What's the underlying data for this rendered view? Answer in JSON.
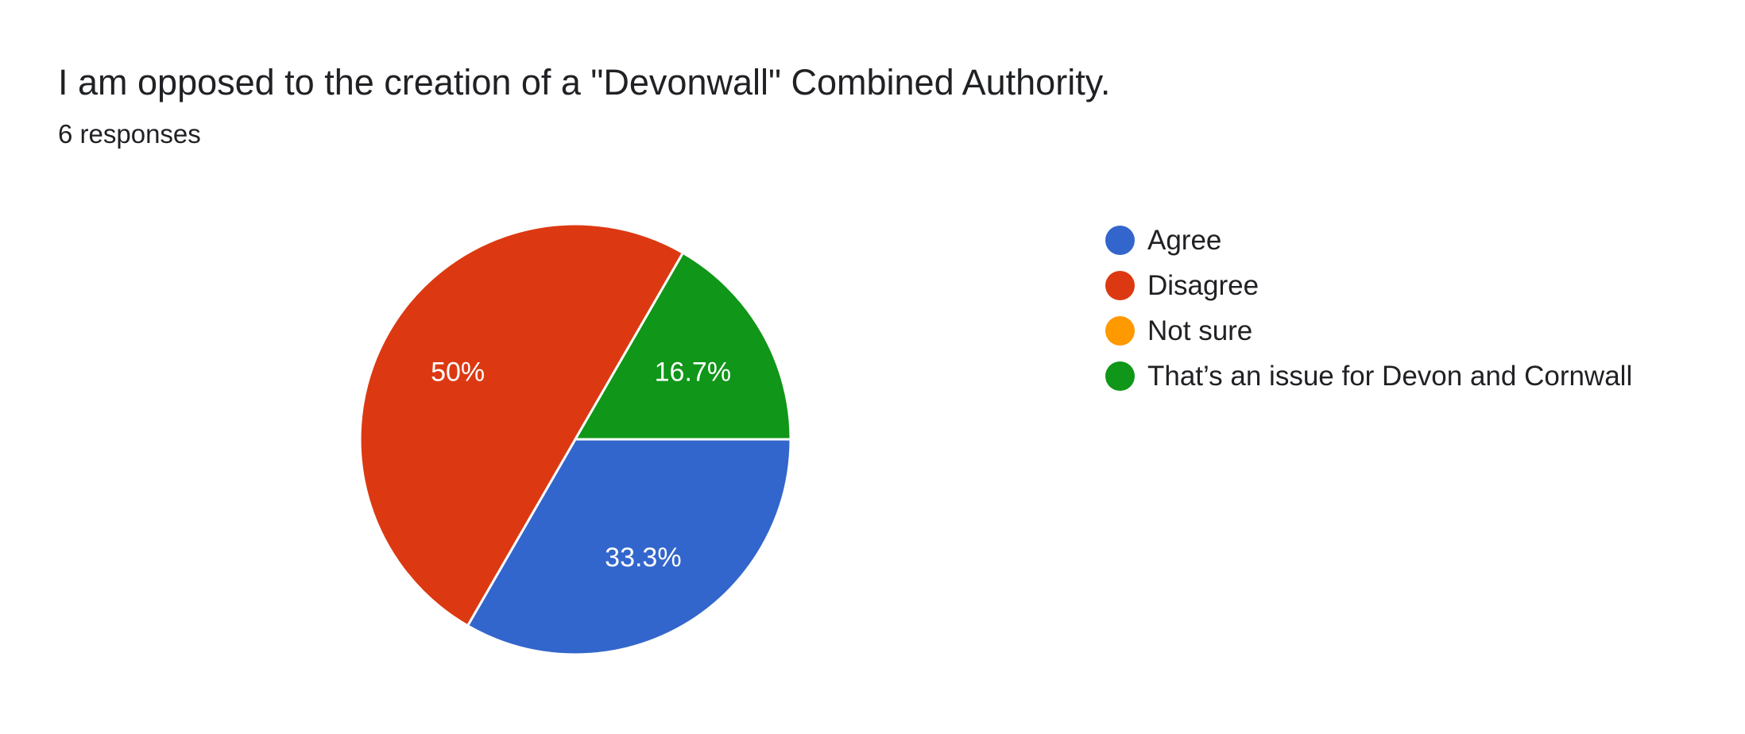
{
  "title": "I am opposed to the creation of a \"Devonwall\" Combined Authority.",
  "subtitle": "6 responses",
  "chart_data": {
    "type": "pie",
    "title": "I am opposed to the creation of a \"Devonwall\" Combined Authority.",
    "subtitle": "6 responses",
    "categories": [
      "Agree",
      "Disagree",
      "Not sure",
      "That’s an issue for Devon and Cornwall"
    ],
    "values": [
      2,
      3,
      0,
      1
    ],
    "percent_labels": [
      "33.3%",
      "50%",
      "",
      "16.7%"
    ],
    "colors": [
      "#3366cc",
      "#dc3912",
      "#ff9900",
      "#109618"
    ],
    "legend_position": "right"
  }
}
